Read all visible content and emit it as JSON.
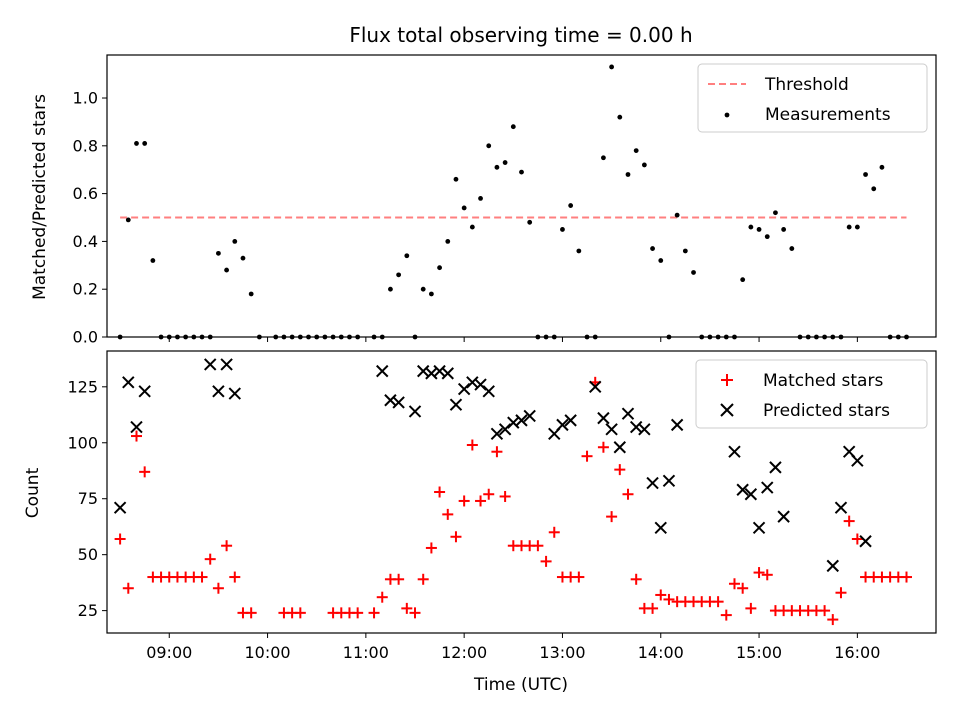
{
  "colors": {
    "threshold": "#ff7f7f",
    "measurement": "#000000",
    "matched": "#ff0000",
    "predicted": "#000000"
  },
  "chart_data": [
    {
      "type": "scatter",
      "title": "Flux total observing time = 0.00 h",
      "ylabel": "Matched/Predicted stars",
      "xlabel": "",
      "xlim": [
        "08:22",
        "16:48"
      ],
      "ylim": [
        0,
        1.18
      ],
      "yticks": [
        0.0,
        0.2,
        0.4,
        0.6,
        0.8,
        1.0
      ],
      "ytick_labels": [
        "0.0",
        "0.2",
        "0.4",
        "0.6",
        "0.8",
        "1.0"
      ],
      "legend_position": "top-right",
      "threshold": {
        "name": "Threshold",
        "value": 0.5,
        "x_range": [
          "08:30",
          "16:30"
        ]
      },
      "series": [
        {
          "name": "Measurements",
          "x": [
            "08:30",
            "08:35",
            "08:40",
            "08:45",
            "08:50",
            "08:55",
            "09:00",
            "09:05",
            "09:10",
            "09:15",
            "09:20",
            "09:25",
            "09:30",
            "09:35",
            "09:40",
            "09:45",
            "09:50",
            "09:55",
            "10:05",
            "10:10",
            "10:15",
            "10:20",
            "10:25",
            "10:30",
            "10:35",
            "10:40",
            "10:45",
            "10:50",
            "10:55",
            "11:05",
            "11:10",
            "11:15",
            "11:20",
            "11:25",
            "11:30",
            "11:35",
            "11:40",
            "11:45",
            "11:50",
            "11:55",
            "12:00",
            "12:05",
            "12:10",
            "12:15",
            "12:20",
            "12:25",
            "12:30",
            "12:35",
            "12:40",
            "12:45",
            "12:50",
            "12:55",
            "13:00",
            "13:05",
            "13:10",
            "13:15",
            "13:20",
            "13:25",
            "13:30",
            "13:35",
            "13:40",
            "13:45",
            "13:50",
            "13:55",
            "14:00",
            "14:05",
            "14:10",
            "14:15",
            "14:20",
            "14:25",
            "14:30",
            "14:35",
            "14:40",
            "14:45",
            "14:50",
            "14:55",
            "15:00",
            "15:05",
            "15:10",
            "15:15",
            "15:20",
            "15:25",
            "15:30",
            "15:35",
            "15:40",
            "15:45",
            "15:50",
            "15:55",
            "16:00",
            "16:05",
            "16:10",
            "16:15",
            "16:20",
            "16:25",
            "16:30"
          ],
          "y": [
            0.0,
            0.49,
            0.81,
            0.81,
            0.32,
            0.0,
            0.0,
            0.0,
            0.0,
            0.0,
            0.0,
            0.0,
            0.35,
            0.28,
            0.4,
            0.33,
            0.18,
            0.0,
            0.0,
            0.0,
            0.0,
            0.0,
            0.0,
            0.0,
            0.0,
            0.0,
            0.0,
            0.0,
            0.0,
            0.0,
            0.0,
            0.2,
            0.26,
            0.34,
            0.0,
            0.2,
            0.18,
            0.29,
            0.4,
            0.66,
            0.54,
            0.46,
            0.58,
            0.8,
            0.71,
            0.73,
            0.88,
            0.69,
            0.48,
            0.0,
            0.0,
            0.0,
            0.45,
            0.55,
            0.36,
            0.0,
            0.0,
            0.75,
            1.13,
            0.92,
            0.68,
            0.78,
            0.72,
            0.37,
            0.32,
            0.0,
            0.51,
            0.36,
            0.27,
            0.0,
            0.0,
            0.0,
            0.0,
            0.0,
            0.24,
            0.46,
            0.45,
            0.42,
            0.52,
            0.45,
            0.37,
            0.0,
            0.0,
            0.0,
            0.0,
            0.0,
            0.0,
            0.46,
            0.46,
            0.68,
            0.62,
            0.71,
            0.0,
            0.0,
            0.0
          ]
        }
      ]
    },
    {
      "type": "scatter",
      "title": "",
      "ylabel": "Count",
      "xlabel": "Time (UTC)",
      "xlim": [
        "08:22",
        "16:48"
      ],
      "ylim": [
        15,
        141
      ],
      "yticks": [
        25,
        50,
        75,
        100,
        125
      ],
      "ytick_labels": [
        "25",
        "50",
        "75",
        "100",
        "125"
      ],
      "xticks": [
        "09:00",
        "10:00",
        "11:00",
        "12:00",
        "13:00",
        "14:00",
        "15:00",
        "16:00"
      ],
      "xtick_labels": [
        "09:00",
        "10:00",
        "11:00",
        "12:00",
        "13:00",
        "14:00",
        "15:00",
        "16:00"
      ],
      "legend_position": "top-right",
      "series": [
        {
          "name": "Matched stars",
          "marker": "+",
          "x": [
            "08:30",
            "08:35",
            "08:40",
            "08:45",
            "08:50",
            "08:55",
            "09:00",
            "09:05",
            "09:10",
            "09:15",
            "09:20",
            "09:25",
            "09:30",
            "09:35",
            "09:40",
            "09:45",
            "09:50",
            "09:55",
            "10:05",
            "10:10",
            "10:15",
            "10:20",
            "10:25",
            "10:30",
            "10:35",
            "10:40",
            "10:45",
            "10:50",
            "10:55",
            "11:05",
            "11:10",
            "11:15",
            "11:20",
            "11:25",
            "11:30",
            "11:35",
            "11:40",
            "11:45",
            "11:50",
            "11:55",
            "12:00",
            "12:05",
            "12:10",
            "12:15",
            "12:20",
            "12:25",
            "12:30",
            "12:35",
            "12:40",
            "12:45",
            "12:50",
            "12:55",
            "13:00",
            "13:05",
            "13:10",
            "13:15",
            "13:20",
            "13:25",
            "13:30",
            "13:35",
            "13:40",
            "13:45",
            "13:50",
            "13:55",
            "14:00",
            "14:05",
            "14:10",
            "14:15",
            "14:20",
            "14:25",
            "14:30",
            "14:35",
            "14:40",
            "14:45",
            "14:50",
            "14:55",
            "15:00",
            "15:05",
            "15:10",
            "15:15",
            "15:20",
            "15:25",
            "15:30",
            "15:35",
            "15:40",
            "15:45",
            "15:50",
            "15:55",
            "16:00",
            "16:05",
            "16:10",
            "16:15",
            "16:20",
            "16:25",
            "16:30"
          ],
          "y": [
            57,
            35,
            103,
            87,
            40,
            40,
            40,
            40,
            40,
            40,
            40,
            48,
            35,
            54,
            40,
            24,
            24,
            null,
            null,
            24,
            24,
            24,
            null,
            null,
            null,
            24,
            24,
            24,
            24,
            24,
            31,
            39,
            39,
            26,
            24,
            39,
            53,
            78,
            68,
            58,
            74,
            99,
            74,
            77,
            96,
            76,
            54,
            54,
            54,
            54,
            47,
            60,
            40,
            40,
            40,
            94,
            127,
            98,
            67,
            88,
            77,
            39,
            26,
            26,
            32,
            30,
            29,
            29,
            29,
            29,
            29,
            29,
            23,
            37,
            35,
            26,
            42,
            41,
            25,
            25,
            25,
            25,
            25,
            25,
            25,
            21,
            33,
            65,
            57,
            40,
            40,
            40,
            40,
            40,
            40
          ]
        },
        {
          "name": "Predicted stars",
          "marker": "x",
          "x": [
            "08:30",
            "08:35",
            "08:40",
            "08:45",
            "08:50",
            "09:20",
            "09:25",
            "09:30",
            "09:35",
            "09:40",
            "11:10",
            "11:15",
            "11:20",
            "11:30",
            "11:35",
            "11:40",
            "11:45",
            "11:50",
            "11:55",
            "12:00",
            "12:05",
            "12:10",
            "12:15",
            "12:20",
            "12:25",
            "12:30",
            "12:35",
            "12:40",
            "12:45",
            "12:50",
            "12:55",
            "13:00",
            "13:05",
            "13:10",
            "13:15",
            "13:20",
            "13:25",
            "13:30",
            "13:35",
            "13:40",
            "13:45",
            "13:50",
            "13:55",
            "14:00",
            "14:05",
            "14:10",
            "14:15",
            "14:20",
            "14:45",
            "14:50",
            "14:55",
            "15:00",
            "15:05",
            "15:10",
            "15:15",
            "15:20",
            "15:40",
            "15:45",
            "15:50",
            "15:55",
            "16:00",
            "16:05"
          ],
          "y": [
            71,
            127,
            107,
            123,
            null,
            null,
            135,
            123,
            135,
            122,
            132,
            119,
            118,
            114,
            132,
            131,
            132,
            131,
            117,
            124,
            127,
            126,
            123,
            104,
            106,
            109,
            110,
            112,
            null,
            null,
            104,
            108,
            110,
            null,
            null,
            125,
            111,
            106,
            98,
            113,
            107,
            106,
            82,
            62,
            83,
            108,
            null,
            null,
            96,
            79,
            77,
            62,
            80,
            89,
            67,
            null,
            null,
            45,
            71,
            96,
            92,
            56
          ]
        }
      ]
    }
  ]
}
